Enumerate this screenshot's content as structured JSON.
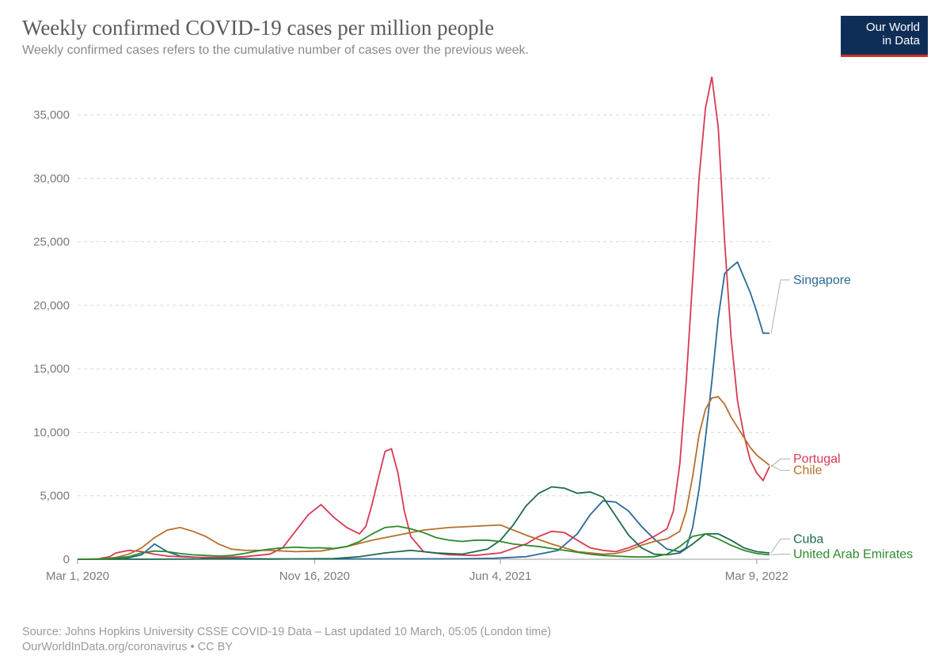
{
  "header": {
    "title": "Weekly confirmed COVID-19 cases per million people",
    "subtitle": "Weekly confirmed cases refers to the cumulative number of cases over the previous week."
  },
  "logo": {
    "line1": "Our World",
    "line2": "in Data"
  },
  "footer": {
    "source": "Source: Johns Hopkins University CSSE COVID-19 Data – Last updated 10 March, 05:05 (London time)",
    "attribution": "OurWorldInData.org/coronavirus • CC BY"
  },
  "chart": {
    "type": "line",
    "background_color": "#ffffff",
    "grid_color": "#d9d9d9",
    "grid_dash": "4 4",
    "axis_font_size": 15,
    "axis_text_color": "#7a7a7a",
    "line_width": 1.8,
    "x": {
      "min": 0,
      "max": 108,
      "ticks": [
        {
          "pos": 0,
          "label": "Mar 1, 2020"
        },
        {
          "pos": 37,
          "label": "Nov 16, 2020"
        },
        {
          "pos": 66,
          "label": "Jun 4, 2021"
        },
        {
          "pos": 106,
          "label": "Mar 9, 2022"
        }
      ]
    },
    "y": {
      "min": 0,
      "max": 38000,
      "ticks": [
        {
          "pos": 0,
          "label": "0"
        },
        {
          "pos": 5000,
          "label": "5,000"
        },
        {
          "pos": 10000,
          "label": "10,000"
        },
        {
          "pos": 15000,
          "label": "15,000"
        },
        {
          "pos": 20000,
          "label": "20,000"
        },
        {
          "pos": 25000,
          "label": "25,000"
        },
        {
          "pos": 30000,
          "label": "30,000"
        },
        {
          "pos": 35000,
          "label": "35,000"
        }
      ]
    },
    "label_font_size": 16,
    "series": [
      {
        "name": "Singapore",
        "color": "#2a6a99",
        "label_y": 22000,
        "points": [
          [
            0,
            0
          ],
          [
            5,
            30
          ],
          [
            8,
            120
          ],
          [
            10,
            350
          ],
          [
            12,
            1200
          ],
          [
            14,
            600
          ],
          [
            16,
            250
          ],
          [
            20,
            100
          ],
          [
            30,
            30
          ],
          [
            40,
            20
          ],
          [
            50,
            30
          ],
          [
            60,
            40
          ],
          [
            65,
            80
          ],
          [
            70,
            200
          ],
          [
            75,
            700
          ],
          [
            78,
            2000
          ],
          [
            80,
            3500
          ],
          [
            82,
            4600
          ],
          [
            84,
            4500
          ],
          [
            86,
            3800
          ],
          [
            88,
            2600
          ],
          [
            90,
            1600
          ],
          [
            92,
            800
          ],
          [
            94,
            600
          ],
          [
            95,
            900
          ],
          [
            96,
            2500
          ],
          [
            97,
            5500
          ],
          [
            98,
            9500
          ],
          [
            99,
            14000
          ],
          [
            100,
            19000
          ],
          [
            101,
            22500
          ],
          [
            102,
            23000
          ],
          [
            103,
            23400
          ],
          [
            104,
            22200
          ],
          [
            105,
            21000
          ],
          [
            106,
            19500
          ],
          [
            107,
            17800
          ],
          [
            108,
            17800
          ]
        ]
      },
      {
        "name": "Portugal",
        "color": "#d73a53",
        "label_y": 7900,
        "points": [
          [
            0,
            0
          ],
          [
            3,
            10
          ],
          [
            5,
            200
          ],
          [
            6,
            500
          ],
          [
            8,
            700
          ],
          [
            10,
            600
          ],
          [
            12,
            400
          ],
          [
            14,
            250
          ],
          [
            18,
            150
          ],
          [
            22,
            150
          ],
          [
            26,
            200
          ],
          [
            30,
            400
          ],
          [
            32,
            900
          ],
          [
            34,
            2200
          ],
          [
            36,
            3500
          ],
          [
            38,
            4300
          ],
          [
            40,
            3300
          ],
          [
            42,
            2500
          ],
          [
            44,
            2000
          ],
          [
            45,
            2600
          ],
          [
            46,
            4400
          ],
          [
            47,
            6500
          ],
          [
            48,
            8500
          ],
          [
            49,
            8700
          ],
          [
            50,
            6800
          ],
          [
            51,
            3800
          ],
          [
            52,
            1800
          ],
          [
            54,
            600
          ],
          [
            58,
            350
          ],
          [
            62,
            300
          ],
          [
            66,
            500
          ],
          [
            70,
            1200
          ],
          [
            72,
            1800
          ],
          [
            74,
            2200
          ],
          [
            76,
            2100
          ],
          [
            78,
            1500
          ],
          [
            80,
            900
          ],
          [
            82,
            700
          ],
          [
            84,
            600
          ],
          [
            86,
            900
          ],
          [
            88,
            1300
          ],
          [
            90,
            1800
          ],
          [
            92,
            2400
          ],
          [
            93,
            3800
          ],
          [
            94,
            7500
          ],
          [
            95,
            14000
          ],
          [
            96,
            22000
          ],
          [
            97,
            30000
          ],
          [
            98,
            35500
          ],
          [
            99,
            38000
          ],
          [
            100,
            34000
          ],
          [
            101,
            25000
          ],
          [
            102,
            17500
          ],
          [
            103,
            12500
          ],
          [
            104,
            9800
          ],
          [
            105,
            7800
          ],
          [
            106,
            6800
          ],
          [
            107,
            6200
          ],
          [
            108,
            7300
          ]
        ]
      },
      {
        "name": "Chile",
        "color": "#b6702a",
        "label_y": 7000,
        "points": [
          [
            0,
            0
          ],
          [
            4,
            20
          ],
          [
            6,
            150
          ],
          [
            8,
            400
          ],
          [
            10,
            900
          ],
          [
            12,
            1700
          ],
          [
            14,
            2300
          ],
          [
            16,
            2500
          ],
          [
            18,
            2200
          ],
          [
            20,
            1800
          ],
          [
            22,
            1200
          ],
          [
            24,
            800
          ],
          [
            26,
            700
          ],
          [
            28,
            700
          ],
          [
            30,
            700
          ],
          [
            34,
            600
          ],
          [
            38,
            650
          ],
          [
            42,
            1000
          ],
          [
            46,
            1500
          ],
          [
            50,
            1900
          ],
          [
            54,
            2300
          ],
          [
            58,
            2500
          ],
          [
            62,
            2600
          ],
          [
            66,
            2700
          ],
          [
            70,
            1900
          ],
          [
            74,
            1200
          ],
          [
            78,
            600
          ],
          [
            82,
            400
          ],
          [
            84,
            450
          ],
          [
            86,
            700
          ],
          [
            88,
            1100
          ],
          [
            90,
            1400
          ],
          [
            92,
            1600
          ],
          [
            94,
            2200
          ],
          [
            95,
            3800
          ],
          [
            96,
            6500
          ],
          [
            97,
            9800
          ],
          [
            98,
            11800
          ],
          [
            99,
            12700
          ],
          [
            100,
            12800
          ],
          [
            101,
            12200
          ],
          [
            102,
            11200
          ],
          [
            103,
            10400
          ],
          [
            104,
            9600
          ],
          [
            105,
            8800
          ],
          [
            106,
            8200
          ],
          [
            107,
            7800
          ],
          [
            108,
            7400
          ]
        ]
      },
      {
        "name": "Cuba",
        "color": "#1f6b4d",
        "label_y": 1600,
        "points": [
          [
            0,
            0
          ],
          [
            10,
            5
          ],
          [
            20,
            15
          ],
          [
            30,
            10
          ],
          [
            40,
            50
          ],
          [
            44,
            200
          ],
          [
            48,
            500
          ],
          [
            52,
            700
          ],
          [
            56,
            500
          ],
          [
            60,
            400
          ],
          [
            64,
            800
          ],
          [
            66,
            1500
          ],
          [
            68,
            2700
          ],
          [
            70,
            4200
          ],
          [
            72,
            5200
          ],
          [
            74,
            5700
          ],
          [
            76,
            5600
          ],
          [
            78,
            5200
          ],
          [
            80,
            5300
          ],
          [
            82,
            4900
          ],
          [
            84,
            3400
          ],
          [
            86,
            1900
          ],
          [
            88,
            900
          ],
          [
            90,
            400
          ],
          [
            92,
            350
          ],
          [
            94,
            500
          ],
          [
            96,
            1200
          ],
          [
            98,
            2000
          ],
          [
            100,
            2000
          ],
          [
            102,
            1500
          ],
          [
            104,
            900
          ],
          [
            106,
            600
          ],
          [
            108,
            500
          ]
        ]
      },
      {
        "name": "United Arab Emirates",
        "color": "#2c8b2c",
        "label_y": 400,
        "points": [
          [
            0,
            0
          ],
          [
            4,
            20
          ],
          [
            8,
            200
          ],
          [
            10,
            500
          ],
          [
            12,
            650
          ],
          [
            14,
            600
          ],
          [
            16,
            450
          ],
          [
            18,
            350
          ],
          [
            20,
            300
          ],
          [
            22,
            250
          ],
          [
            24,
            300
          ],
          [
            26,
            450
          ],
          [
            28,
            650
          ],
          [
            30,
            800
          ],
          [
            32,
            900
          ],
          [
            34,
            950
          ],
          [
            36,
            900
          ],
          [
            38,
            900
          ],
          [
            40,
            850
          ],
          [
            42,
            1000
          ],
          [
            44,
            1400
          ],
          [
            46,
            2000
          ],
          [
            48,
            2500
          ],
          [
            50,
            2600
          ],
          [
            52,
            2400
          ],
          [
            54,
            2100
          ],
          [
            56,
            1700
          ],
          [
            58,
            1500
          ],
          [
            60,
            1400
          ],
          [
            62,
            1500
          ],
          [
            64,
            1500
          ],
          [
            66,
            1400
          ],
          [
            68,
            1200
          ],
          [
            70,
            1100
          ],
          [
            72,
            1000
          ],
          [
            74,
            850
          ],
          [
            76,
            700
          ],
          [
            78,
            550
          ],
          [
            80,
            400
          ],
          [
            82,
            300
          ],
          [
            84,
            250
          ],
          [
            86,
            200
          ],
          [
            88,
            180
          ],
          [
            90,
            200
          ],
          [
            92,
            400
          ],
          [
            94,
            1000
          ],
          [
            96,
            1800
          ],
          [
            98,
            2000
          ],
          [
            100,
            1600
          ],
          [
            102,
            1100
          ],
          [
            104,
            700
          ],
          [
            106,
            450
          ],
          [
            108,
            350
          ]
        ]
      }
    ]
  }
}
